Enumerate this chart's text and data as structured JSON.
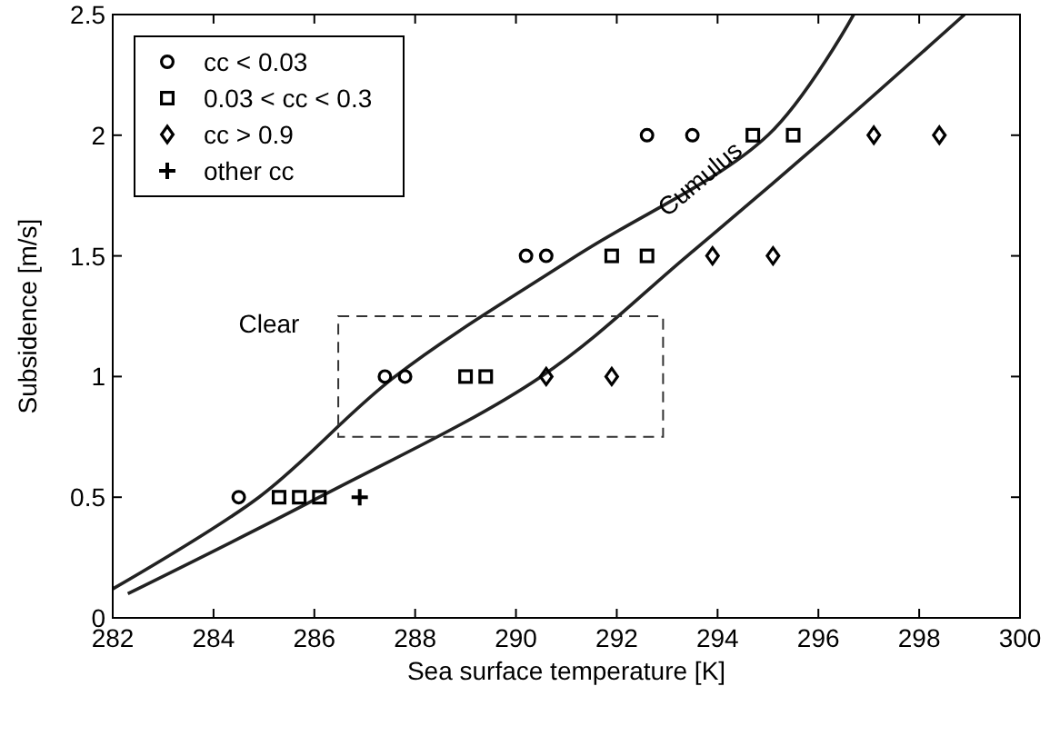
{
  "chart_data": {
    "type": "scatter",
    "xlabel": "Sea surface temperature [K]",
    "ylabel": "Subsidence [m/s]",
    "xlim": [
      282,
      300
    ],
    "xticks": [
      282,
      284,
      286,
      288,
      290,
      292,
      294,
      296,
      298,
      300
    ],
    "ylim": [
      0,
      2.5
    ],
    "yticks": [
      0,
      0.5,
      1,
      1.5,
      2,
      2.5
    ],
    "legend": "top left",
    "series": [
      {
        "name": "cc < 0.03",
        "color": "#000000",
        "marker": "circle",
        "x": [
          284.5,
          287.4,
          287.8,
          290.2,
          290.6,
          292.6,
          293.5
        ],
        "values": [
          0.5,
          1,
          1,
          1.5,
          1.5,
          2,
          2
        ]
      },
      {
        "name": "0.03 < cc < 0.3",
        "color": "#000000",
        "marker": "square",
        "x": [
          285.3,
          285.7,
          286.1,
          289.0,
          289.4,
          291.9,
          292.6,
          294.7,
          295.5
        ],
        "values": [
          0.5,
          0.5,
          0.5,
          1,
          1,
          1.5,
          1.5,
          2,
          2
        ]
      },
      {
        "name": "cc > 0.9",
        "color": "#000000",
        "marker": "diamond",
        "x": [
          290.6,
          291.9,
          293.9,
          295.1,
          297.1,
          298.4
        ],
        "values": [
          1,
          1,
          1.5,
          1.5,
          2,
          2
        ]
      },
      {
        "name": "other cc",
        "color": "#000000",
        "marker": "cross",
        "x": [
          286.9
        ],
        "values": [
          0.5
        ]
      },
      {
        "type": "line",
        "color": "#222222",
        "line_style": "solid",
        "x": [
          282,
          284.9,
          287.6,
          291.2,
          295.0,
          296.7
        ],
        "values": [
          0.12,
          0.5,
          1,
          1.5,
          2,
          2.5
        ]
      },
      {
        "type": "line",
        "color": "#222222",
        "line_style": "solid",
        "x": [
          282.3,
          286.1,
          290.5,
          293.4,
          296.2,
          298.9
        ],
        "values": [
          0.1,
          0.5,
          1,
          1.5,
          2,
          2.5
        ]
      }
    ],
    "annotations": [
      "Clear",
      "Cumulus"
    ]
  }
}
